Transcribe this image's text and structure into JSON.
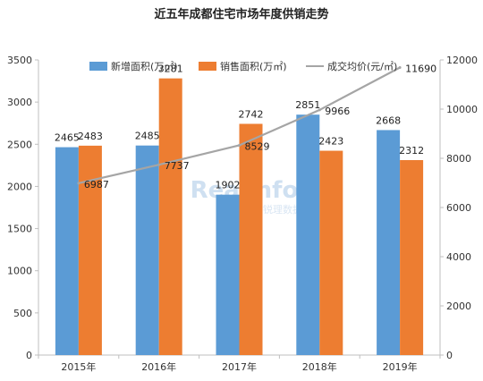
{
  "chart_data": {
    "type": "bar",
    "title": "近五年成都住宅市场年度供销走势",
    "categories": [
      "2015年",
      "2016年",
      "2017年",
      "2018年",
      "2019年"
    ],
    "series": [
      {
        "name": "新增面积(万㎡)",
        "type": "bar",
        "axis": "left",
        "color": "#5b9bd5",
        "values": [
          2465,
          2485,
          1902,
          2851,
          2668
        ]
      },
      {
        "name": "销售面积(万㎡)",
        "type": "bar",
        "axis": "left",
        "color": "#ed7d31",
        "values": [
          2483,
          3281,
          2742,
          2423,
          2312
        ]
      },
      {
        "name": "成交均价(元/㎡)",
        "type": "line",
        "axis": "right",
        "color": "#a5a5a5",
        "values": [
          6987,
          7737,
          8529,
          9966,
          11690
        ]
      }
    ],
    "ylim_left": [
      0,
      3500
    ],
    "yticks_left": [
      "0",
      "500",
      "1000",
      "1500",
      "2000",
      "2500",
      "3000",
      "3500"
    ],
    "ylim_right": [
      0,
      12000
    ],
    "yticks_right": [
      "0",
      "2000",
      "4000",
      "6000",
      "8000",
      "10000",
      "12000"
    ],
    "grid": false,
    "legend": "top"
  },
  "watermark": {
    "text": "Realinfo",
    "subtext": "锐理数据"
  }
}
